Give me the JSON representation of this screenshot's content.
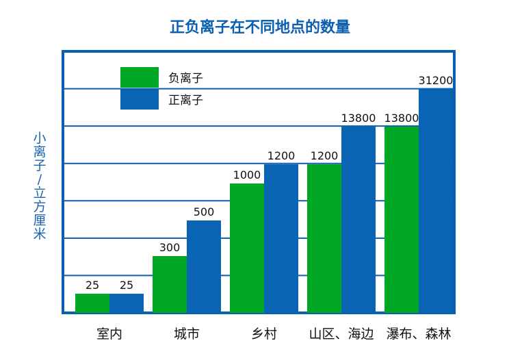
{
  "chart_data": {
    "type": "bar",
    "title": "正负离子在不同地点的数量",
    "xlabel": "",
    "ylabel": "小离子/立方厘米",
    "categories": [
      "室内",
      "城市",
      "乡村",
      "山区、海边",
      "瀑布、森林"
    ],
    "series": [
      {
        "name": "负离子",
        "color": "#00a826",
        "values": [
          25,
          300,
          1000,
          1200,
          13800
        ]
      },
      {
        "name": "正离子",
        "color": "#0a64b4",
        "values": [
          25,
          500,
          1200,
          13800,
          31200
        ]
      }
    ],
    "data_labels": [
      [
        "25",
        "300",
        "1000",
        "1200",
        "13800"
      ],
      [
        "25",
        "500",
        "1200",
        "13800",
        "31200"
      ]
    ],
    "ylim": [
      0,
      31200
    ],
    "grid": true,
    "legend": "top-left",
    "axis_color": "#0a5fb0"
  }
}
